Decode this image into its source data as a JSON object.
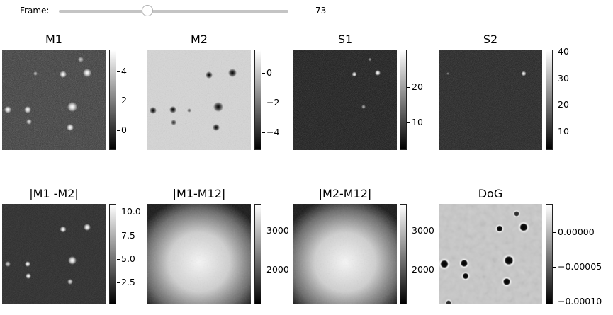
{
  "slider": {
    "label": "Frame:",
    "value": "73"
  },
  "colors": {
    "slider_track": "#c4c4c4",
    "slider_thumb_border": "#b0b0b0",
    "cmap": "gray"
  },
  "panels": [
    {
      "title": "M1",
      "ticks": [
        "4",
        "2",
        "0"
      ]
    },
    {
      "title": "M2",
      "ticks": [
        "0",
        "−2",
        "−4"
      ]
    },
    {
      "title": "S1",
      "ticks": [
        "20",
        "10"
      ]
    },
    {
      "title": "S2",
      "ticks": [
        "40",
        "30",
        "20",
        "10"
      ]
    },
    {
      "title": "|M1 -M2|",
      "ticks": [
        "10.0",
        "7.5",
        "5.0",
        "2.5"
      ]
    },
    {
      "title": "|M1-M12|",
      "ticks": [
        "3000",
        "2000"
      ]
    },
    {
      "title": "|M2-M12|",
      "ticks": [
        "3000",
        "2000"
      ]
    },
    {
      "title": "DoG",
      "ticks": [
        "0.00000",
        "−0.00005",
        "−0.00010"
      ]
    }
  ]
}
